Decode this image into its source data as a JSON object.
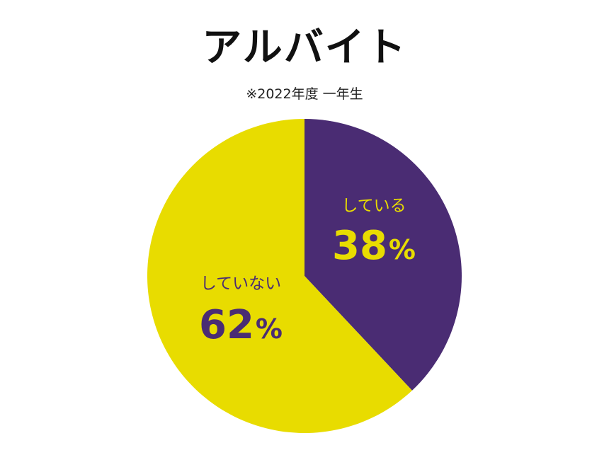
{
  "chart_data": {
    "type": "pie",
    "title": "アルバイト",
    "subtitle": "※2022年度 一年生",
    "slices": [
      {
        "label": "している",
        "value": 38,
        "value_text": "38",
        "unit": "%",
        "color": "#4a2c73",
        "label_color": "#e8dc00"
      },
      {
        "label": "していない",
        "value": 62,
        "value_text": "62",
        "unit": "%",
        "color": "#e8dc00",
        "label_color": "#4a2c73"
      }
    ],
    "start_angle": "12 o'clock",
    "direction": "clockwise"
  }
}
